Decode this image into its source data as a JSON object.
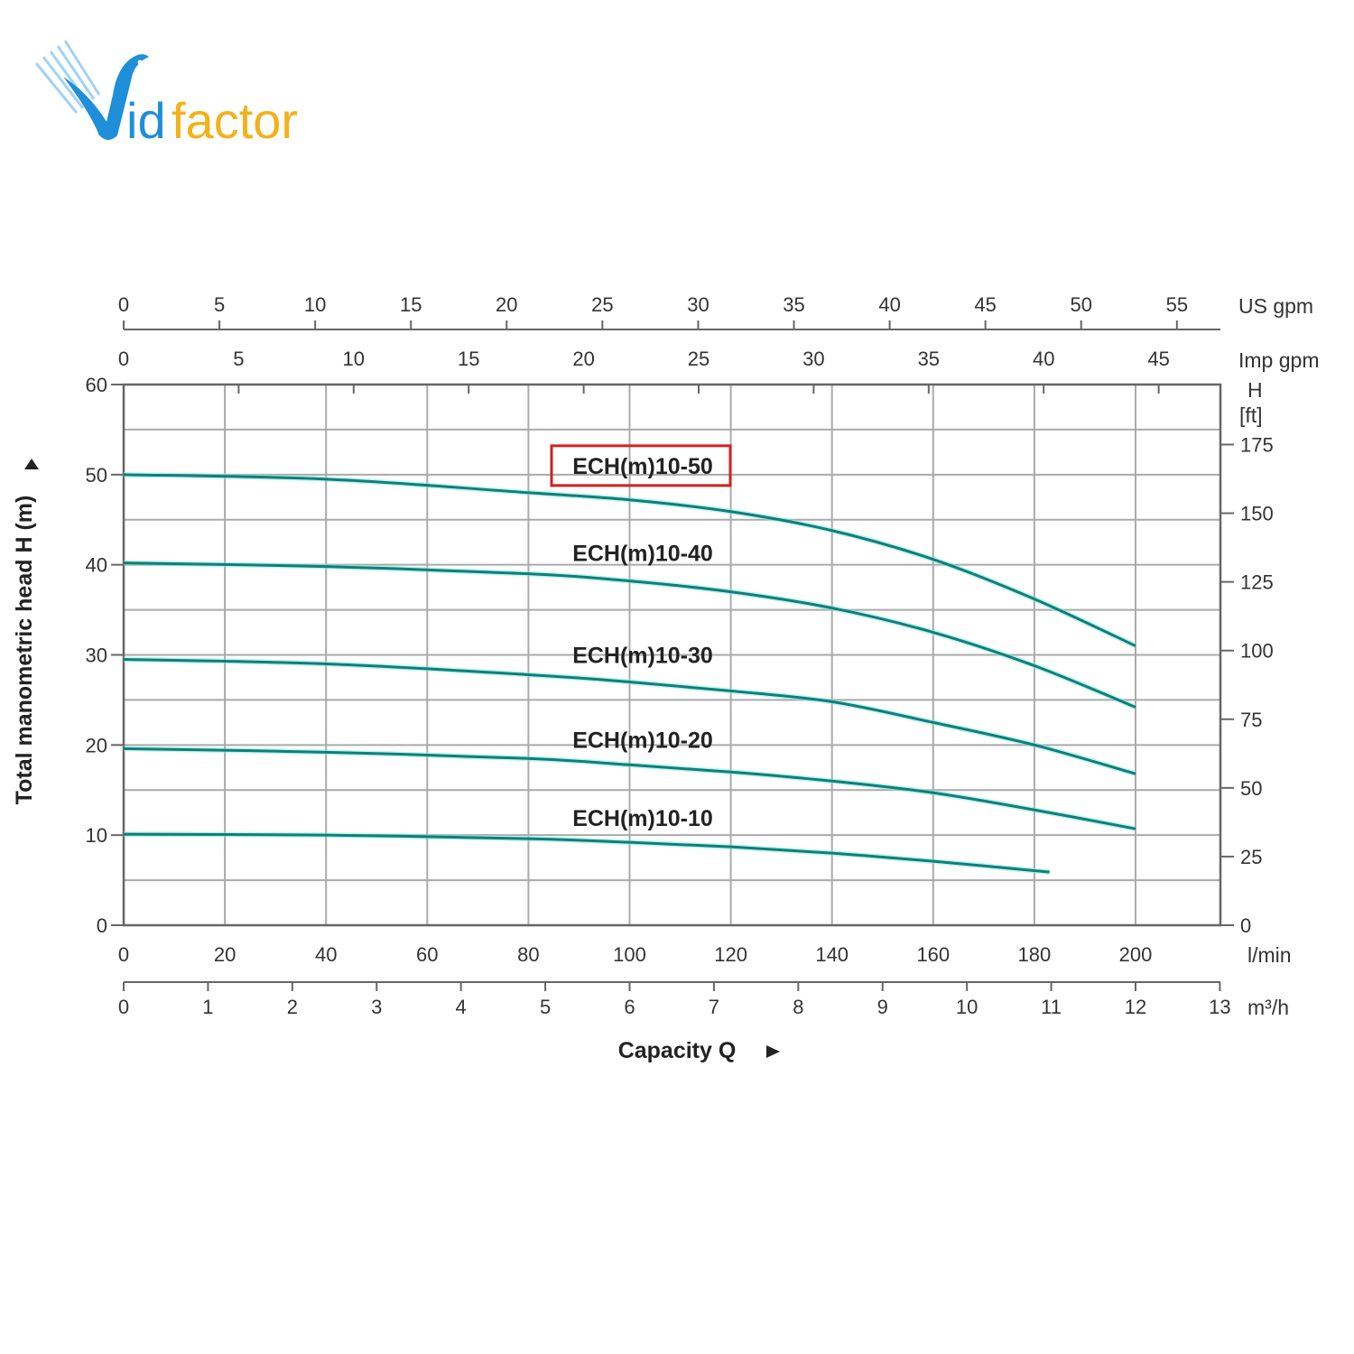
{
  "logo": {
    "text_blue": "id",
    "text_orange": "factor",
    "brand_blue": "#1e8fd8",
    "brand_orange": "#f2b21b"
  },
  "chart_data": {
    "type": "line",
    "title": "",
    "xlabel": "Capacity Q",
    "ylabel": "Total manometric head H (m)",
    "xlim": [
      0,
      216.8
    ],
    "ylim": [
      0,
      60
    ],
    "grid": true,
    "x_unit": "l/min",
    "x_ticks": [
      0,
      20,
      40,
      60,
      80,
      100,
      120,
      140,
      160,
      180,
      200
    ],
    "y_ticks": [
      0,
      10,
      20,
      30,
      40,
      50,
      60
    ],
    "secondary_axes": {
      "us_gpm": {
        "unit": "US gpm",
        "ticks": [
          0,
          5,
          10,
          15,
          20,
          25,
          30,
          35,
          40,
          45,
          50,
          55
        ]
      },
      "imp_gpm": {
        "unit": "Imp gpm",
        "ticks": [
          0,
          5,
          10,
          15,
          20,
          25,
          30,
          35,
          40,
          45
        ]
      },
      "m3h": {
        "unit": "m³/h",
        "ticks": [
          0,
          1,
          2,
          3,
          4,
          5,
          6,
          7,
          8,
          9,
          10,
          11,
          12,
          13
        ]
      },
      "ft": {
        "unit_line1": "H",
        "unit_line2": "[ft]",
        "ticks": [
          0,
          25,
          50,
          75,
          100,
          125,
          150,
          175
        ]
      }
    },
    "line_color": "#0f7f7a",
    "highlight_color": "#d42020",
    "series": [
      {
        "name": "ECH(m)10-50",
        "highlighted": true,
        "x": [
          0,
          40,
          80,
          100,
          120,
          140,
          160,
          180,
          200
        ],
        "y": [
          50,
          49.5,
          48,
          47.2,
          45.9,
          43.8,
          40.6,
          36.2,
          31
        ]
      },
      {
        "name": "ECH(m)10-40",
        "highlighted": false,
        "x": [
          0,
          40,
          80,
          100,
          120,
          140,
          160,
          180,
          200
        ],
        "y": [
          40.2,
          39.8,
          39,
          38.2,
          37,
          35.2,
          32.5,
          28.8,
          24.2
        ]
      },
      {
        "name": "ECH(m)10-30",
        "highlighted": false,
        "x": [
          0,
          40,
          80,
          100,
          120,
          140,
          160,
          180,
          200
        ],
        "y": [
          29.5,
          29,
          27.8,
          27,
          26,
          24.8,
          22.5,
          20,
          16.8
        ]
      },
      {
        "name": "ECH(m)10-20",
        "highlighted": false,
        "x": [
          0,
          40,
          80,
          100,
          120,
          140,
          160,
          180,
          200
        ],
        "y": [
          19.6,
          19.2,
          18.5,
          17.8,
          17,
          16,
          14.7,
          12.8,
          10.7
        ]
      },
      {
        "name": "ECH(m)10-10",
        "highlighted": false,
        "x": [
          0,
          40,
          80,
          100,
          120,
          140,
          160,
          183
        ],
        "y": [
          10.1,
          10,
          9.6,
          9.2,
          8.7,
          8,
          7.1,
          5.9
        ]
      }
    ],
    "series_label_y": [
      51,
      41.3,
      30,
      20.6,
      11.9
    ]
  }
}
